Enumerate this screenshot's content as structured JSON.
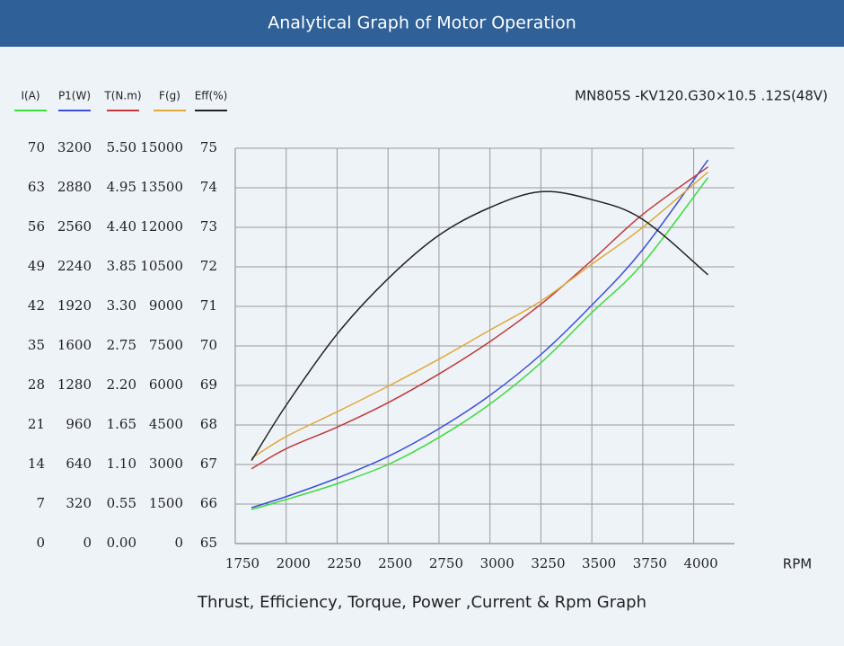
{
  "chart_data": {
    "type": "line",
    "title": "Analytical Graph of Motor Operation",
    "subtitle": "MN805S -KV120.G30×10.5 .12S(48V)",
    "xlabel": "RPM",
    "caption": "Thrust, Efficiency, Torque, Power ,Current & Rpm Graph",
    "x": [
      1830,
      2000,
      2250,
      2500,
      2750,
      3000,
      3250,
      3500,
      3750,
      4070
    ],
    "xlim": [
      1750,
      4200
    ],
    "xticks": [
      1750,
      2000,
      2250,
      2500,
      2750,
      3000,
      3250,
      3500,
      3750,
      4000
    ],
    "grid": true,
    "series": [
      {
        "name": "I(A)",
        "color": "#3ddc3d",
        "ylim": [
          0,
          70
        ],
        "yticks": [
          0,
          7,
          14,
          21,
          28,
          35,
          42,
          49,
          56,
          63,
          70
        ],
        "values": [
          6.05,
          7.8,
          10.6,
          14.0,
          18.8,
          24.7,
          32.0,
          40.9,
          49.6,
          64.8
        ]
      },
      {
        "name": "P1(W)",
        "color": "#3b4fd6",
        "ylim": [
          0,
          3200
        ],
        "yticks": [
          0,
          320,
          640,
          960,
          1280,
          1600,
          1920,
          2240,
          2560,
          2880,
          3200
        ],
        "values": [
          291,
          380,
          530,
          705,
          930,
          1200,
          1530,
          1930,
          2380,
          3105
        ]
      },
      {
        "name": "T(N.m)",
        "color": "#c0393b",
        "ylim": [
          0,
          5.5
        ],
        "yticks": [
          {
            "value": 0,
            "label": "0.00"
          },
          0.55,
          {
            "value": 1.1,
            "label": "1.10"
          },
          1.65,
          {
            "value": 2.2,
            "label": "2.20"
          },
          2.75,
          {
            "value": 3.3,
            "label": "3.30"
          },
          3.85,
          {
            "value": 4.4,
            "label": "4.40"
          },
          4.95,
          {
            "value": 5.5,
            "label": "5.50"
          }
        ],
        "values": [
          1.04,
          1.32,
          1.62,
          1.96,
          2.36,
          2.81,
          3.33,
          3.94,
          4.58,
          5.24
        ]
      },
      {
        "name": "F(g)",
        "color": "#e0a93a",
        "ylim": [
          0,
          15000
        ],
        "yticks": [
          0,
          1500,
          3000,
          4500,
          6000,
          7500,
          9000,
          10500,
          12000,
          13500,
          15000
        ],
        "values": [
          3240,
          4060,
          5000,
          5970,
          7000,
          8100,
          9200,
          10600,
          12000,
          14100
        ]
      },
      {
        "name": "Eff(%)",
        "color": "#222222",
        "ylim": [
          65,
          75
        ],
        "yticks": [
          65,
          66,
          67,
          68,
          69,
          70,
          71,
          72,
          73,
          74,
          75
        ],
        "values": [
          67.1,
          68.5,
          70.3,
          71.7,
          72.8,
          73.5,
          73.9,
          73.7,
          73.2,
          71.8
        ]
      }
    ]
  }
}
